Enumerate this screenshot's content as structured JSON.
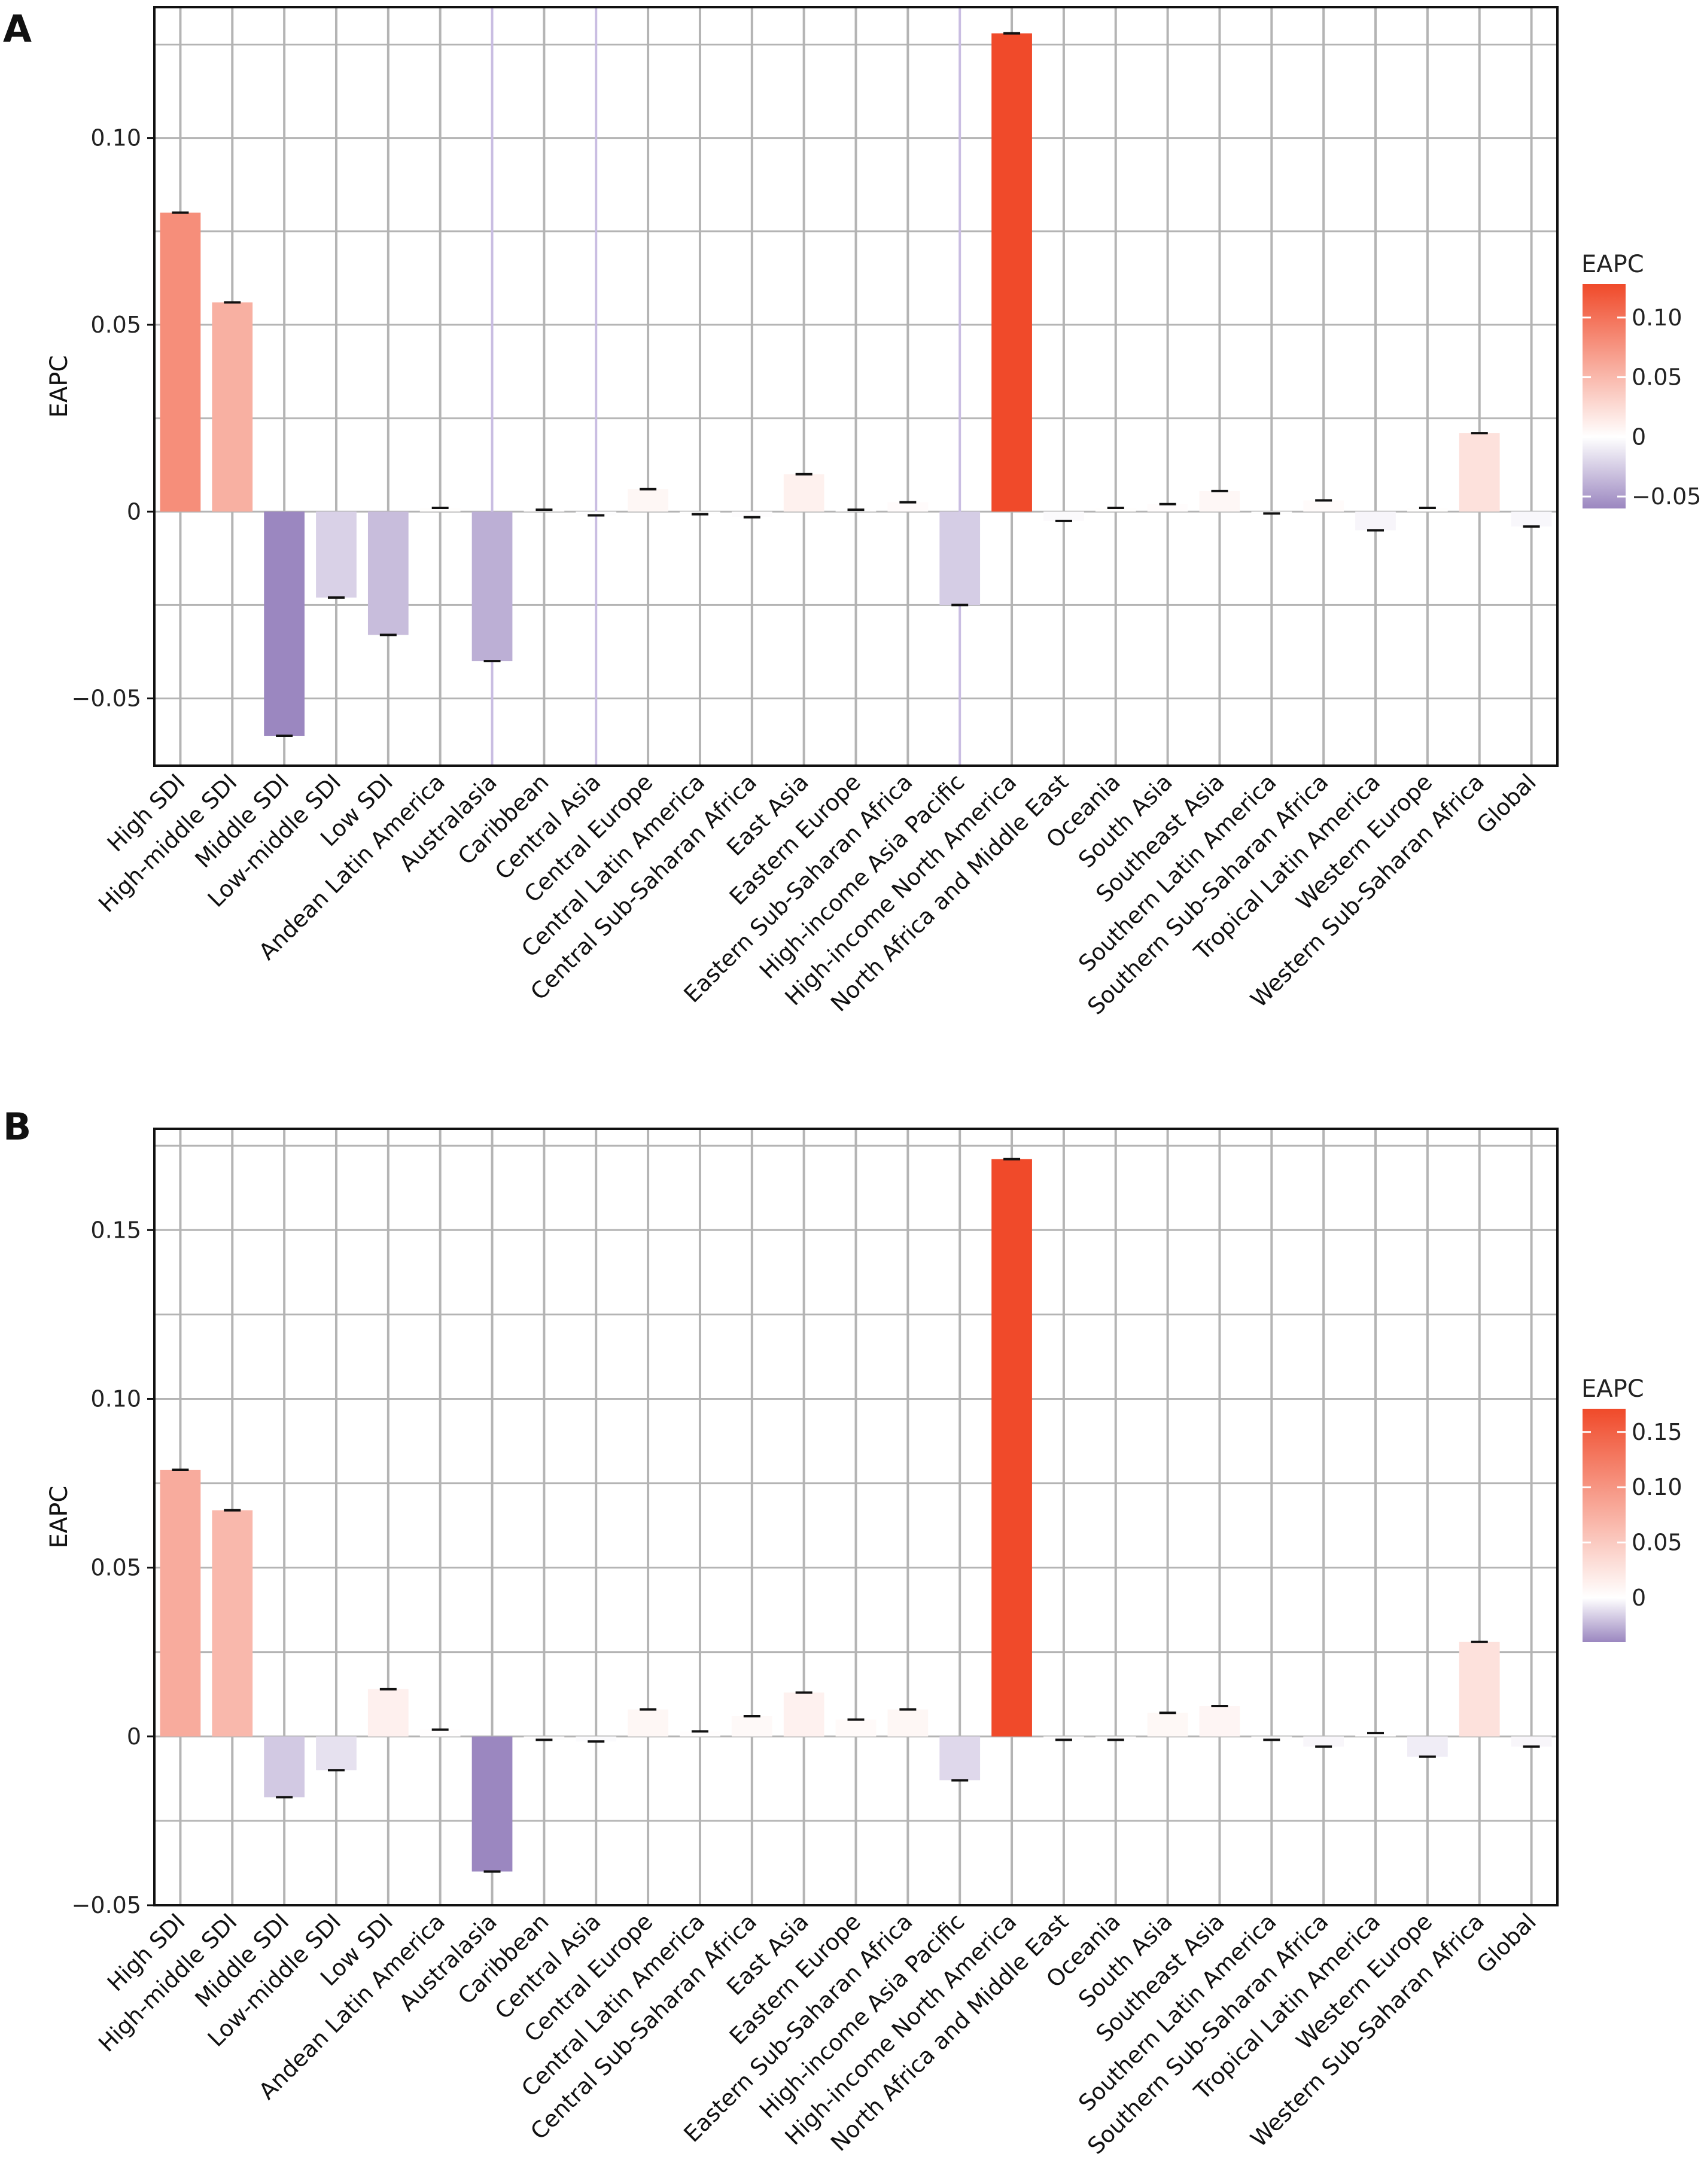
{
  "chart_data": [
    {
      "panel": "A",
      "type": "bar",
      "xlabel": "",
      "ylabel": "EAPC",
      "ylim": [
        -0.068,
        0.135
      ],
      "yticks": [
        -0.05,
        0,
        0.05,
        0.1
      ],
      "ytick_labels": [
        "−0.05",
        "0",
        "0.05",
        "0.10"
      ],
      "grid": true,
      "legend": {
        "title": "EAPC",
        "placement": "right",
        "range": [
          -0.06,
          0.128
        ],
        "ticks": [
          -0.05,
          0,
          0.05,
          0.1
        ],
        "tick_labels": [
          "−0.05",
          "0",
          "0.05",
          "0.10"
        ]
      },
      "categories": [
        "High SDI",
        "High-middle SDI",
        "Middle SDI",
        "Low-middle SDI",
        "Low SDI",
        "Andean Latin America",
        "Australasia",
        "Caribbean",
        "Central Asia",
        "Central Europe",
        "Central Latin America",
        "Central Sub-Saharan Africa",
        "East Asia",
        "Eastern Europe",
        "Eastern Sub-Saharan Africa",
        "High-income Asia Pacific",
        "High-income North America",
        "North Africa and Middle East",
        "Oceania",
        "South Asia",
        "Southeast Asia",
        "Southern Latin America",
        "Southern Sub-Saharan Africa",
        "Tropical Latin America",
        "Western Europe",
        "Western Sub-Saharan Africa",
        "Global"
      ],
      "values": [
        0.08,
        0.056,
        -0.06,
        -0.023,
        -0.033,
        0.001,
        -0.04,
        0.0005,
        -0.001,
        0.006,
        -0.0007,
        -0.0015,
        0.01,
        0.0005,
        0.0025,
        -0.025,
        0.128,
        -0.0025,
        0.001,
        0.002,
        0.0055,
        -0.0005,
        0.003,
        -0.005,
        0.001,
        0.021,
        -0.004
      ],
      "colors": {
        "negative_max": "#9b87c0",
        "zero": "#ffffff",
        "positive_max": "#f04a2a",
        "bar_border_gridline_highlight": "#c9bde2"
      }
    },
    {
      "panel": "B",
      "type": "bar",
      "xlabel": "",
      "ylabel": "EAPC",
      "ylim": [
        -0.05,
        0.18
      ],
      "yticks": [
        -0.05,
        0,
        0.05,
        0.1,
        0.15
      ],
      "ytick_labels": [
        "−0.05",
        "0",
        "0.05",
        "0.10",
        "0.15"
      ],
      "grid": true,
      "legend": {
        "title": "EAPC",
        "placement": "right",
        "range": [
          -0.04,
          0.171
        ],
        "ticks": [
          0,
          0.05,
          0.1,
          0.15
        ],
        "tick_labels": [
          "0",
          "0.05",
          "0.10",
          "0.15"
        ]
      },
      "categories": [
        "High SDI",
        "High-middle SDI",
        "Middle SDI",
        "Low-middle SDI",
        "Low SDI",
        "Andean Latin America",
        "Australasia",
        "Caribbean",
        "Central Asia",
        "Central Europe",
        "Central Latin America",
        "Central Sub-Saharan Africa",
        "East Asia",
        "Eastern Europe",
        "Eastern Sub-Saharan Africa",
        "High-income Asia Pacific",
        "High-income North America",
        "North Africa and Middle East",
        "Oceania",
        "South Asia",
        "Southeast Asia",
        "Southern Latin America",
        "Southern Sub-Saharan Africa",
        "Tropical Latin America",
        "Western Europe",
        "Western Sub-Saharan Africa",
        "Global"
      ],
      "values": [
        0.079,
        0.067,
        -0.018,
        -0.01,
        0.014,
        0.002,
        -0.04,
        -0.001,
        -0.0015,
        0.008,
        0.0015,
        0.006,
        0.013,
        0.005,
        0.008,
        -0.013,
        0.171,
        -0.001,
        -0.001,
        0.007,
        0.009,
        -0.001,
        -0.003,
        0.001,
        -0.006,
        0.028,
        -0.003
      ],
      "colors": {
        "negative_max": "#9b87c0",
        "zero": "#ffffff",
        "positive_max": "#f04a2a"
      }
    }
  ]
}
